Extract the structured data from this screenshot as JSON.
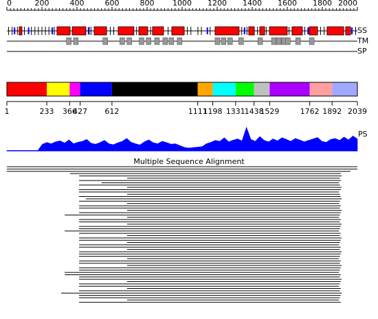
{
  "axis": {
    "lim": [
      0,
      2000
    ],
    "ticks": [
      0,
      200,
      400,
      600,
      800,
      1000,
      1200,
      1400,
      1600,
      1800,
      2000
    ]
  },
  "tracks": {
    "ss": "SS",
    "tm": "TM",
    "sp": "SP",
    "ps": "PS"
  },
  "ss": {
    "helix_color": "#ff0000",
    "strand_color": "#0000ff",
    "helices": [
      [
        70,
        86
      ],
      [
        286,
        361
      ],
      [
        373,
        451
      ],
      [
        498,
        569
      ],
      [
        635,
        725
      ],
      [
        753,
        804
      ],
      [
        831,
        894
      ],
      [
        941,
        1012
      ],
      [
        1188,
        1325
      ],
      [
        1380,
        1412
      ],
      [
        1443,
        1471
      ],
      [
        1498,
        1600
      ],
      [
        1627,
        1686
      ],
      [
        1725,
        1773
      ],
      [
        1827,
        1922
      ],
      [
        1933,
        1961
      ]
    ],
    "strands": [
      [
        40,
        48
      ],
      [
        120,
        128
      ],
      [
        255,
        263
      ],
      [
        462,
        470
      ],
      [
        1140,
        1148
      ],
      [
        1352,
        1360
      ],
      [
        1715,
        1723
      ],
      [
        1965,
        1973
      ]
    ],
    "coil_ticks": [
      10,
      30,
      60,
      100,
      140,
      160,
      180,
      200,
      220,
      240,
      270,
      470,
      480,
      590,
      610,
      740,
      820,
      920,
      1030,
      1050,
      1090,
      1110,
      1160,
      1340,
      1370,
      1430,
      1480,
      1610,
      1700,
      1790,
      1810,
      1990
    ]
  },
  "tm": {
    "color": "#999999",
    "segments": [
      [
        340,
        367
      ],
      [
        380,
        407
      ],
      [
        548,
        575
      ],
      [
        645,
        672
      ],
      [
        685,
        712
      ],
      [
        755,
        782
      ],
      [
        795,
        822
      ],
      [
        843,
        870
      ],
      [
        890,
        917
      ],
      [
        925,
        952
      ],
      [
        972,
        999
      ],
      [
        1188,
        1215
      ],
      [
        1223,
        1250
      ],
      [
        1260,
        1287
      ],
      [
        1323,
        1350
      ],
      [
        1432,
        1459
      ],
      [
        1510,
        1537
      ],
      [
        1538,
        1565
      ],
      [
        1568,
        1595
      ],
      [
        1590,
        1617
      ],
      [
        1648,
        1675
      ],
      [
        1726,
        1753
      ]
    ]
  },
  "domains": {
    "lim": [
      1,
      2039
    ],
    "boundaries": [
      1,
      233,
      366,
      427,
      612,
      1111,
      1198,
      1331,
      1438,
      1529,
      1762,
      1892,
      2039
    ],
    "colors": [
      "#ff0000",
      "#ffff00",
      "#ff00ff",
      "#0000ff",
      "#000000",
      "#ffa500",
      "#00ffff",
      "#00ff00",
      "#c0c0c0",
      "#aa00ff",
      "#ff9f9f",
      "#a0a8ff"
    ]
  },
  "ps": {
    "color": "#0000ff",
    "ylim": [
      0,
      100
    ],
    "values": [
      2,
      2,
      2,
      2,
      2,
      2,
      2,
      2,
      28,
      35,
      30,
      38,
      42,
      33,
      46,
      30,
      36,
      40,
      48,
      32,
      28,
      35,
      44,
      30,
      26,
      34,
      40,
      52,
      36,
      30,
      25,
      38,
      46,
      34,
      30,
      40,
      35,
      28,
      30,
      22,
      15,
      12,
      14,
      16,
      18,
      30,
      36,
      44,
      40,
      55,
      38,
      45,
      50,
      42,
      98,
      48,
      40,
      60,
      44,
      38,
      50,
      42,
      55,
      48,
      40,
      52,
      46,
      38,
      44,
      50,
      56,
      40,
      36,
      48,
      52,
      44,
      58,
      46,
      62,
      50
    ]
  },
  "msa": {
    "title": "Multiple Sequence Alignment",
    "color": "#000000",
    "rows": [
      [
        0,
        2000
      ],
      [
        0,
        2000
      ],
      [
        0,
        1960
      ],
      [
        360,
        1905
      ],
      [
        412,
        1910
      ],
      [
        686,
        1900
      ],
      [
        412,
        1905
      ],
      [
        540,
        1895
      ],
      [
        412,
        1900
      ],
      [
        686,
        1910
      ],
      [
        412,
        1905
      ],
      [
        412,
        1895
      ],
      [
        686,
        1900
      ],
      [
        412,
        1905
      ],
      [
        450,
        1910
      ],
      [
        412,
        1900
      ],
      [
        686,
        1895
      ],
      [
        412,
        1905
      ],
      [
        412,
        1900
      ],
      [
        686,
        1910
      ],
      [
        412,
        1905
      ],
      [
        330,
        1900
      ],
      [
        686,
        1895
      ],
      [
        412,
        1905
      ],
      [
        412,
        1900
      ],
      [
        686,
        1910
      ],
      [
        412,
        1905
      ],
      [
        412,
        1900
      ],
      [
        330,
        1895
      ],
      [
        412,
        1905
      ],
      [
        686,
        1900
      ],
      [
        412,
        1910
      ],
      [
        412,
        1905
      ],
      [
        686,
        1900
      ],
      [
        412,
        1895
      ],
      [
        412,
        1905
      ],
      [
        686,
        1900
      ],
      [
        412,
        1910
      ],
      [
        412,
        1905
      ],
      [
        412,
        1900
      ],
      [
        686,
        1895
      ],
      [
        412,
        1905
      ],
      [
        412,
        1900
      ],
      [
        686,
        1910
      ],
      [
        412,
        1905
      ],
      [
        412,
        1900
      ],
      [
        330,
        1895
      ],
      [
        330,
        1905
      ],
      [
        412,
        1900
      ],
      [
        412,
        1910
      ],
      [
        686,
        1905
      ],
      [
        412,
        1900
      ],
      [
        412,
        1895
      ],
      [
        686,
        1905
      ],
      [
        412,
        1900
      ],
      [
        310,
        1910
      ],
      [
        412,
        1905
      ],
      [
        412,
        1900
      ],
      [
        686,
        1895
      ],
      [
        412,
        1905
      ]
    ]
  }
}
